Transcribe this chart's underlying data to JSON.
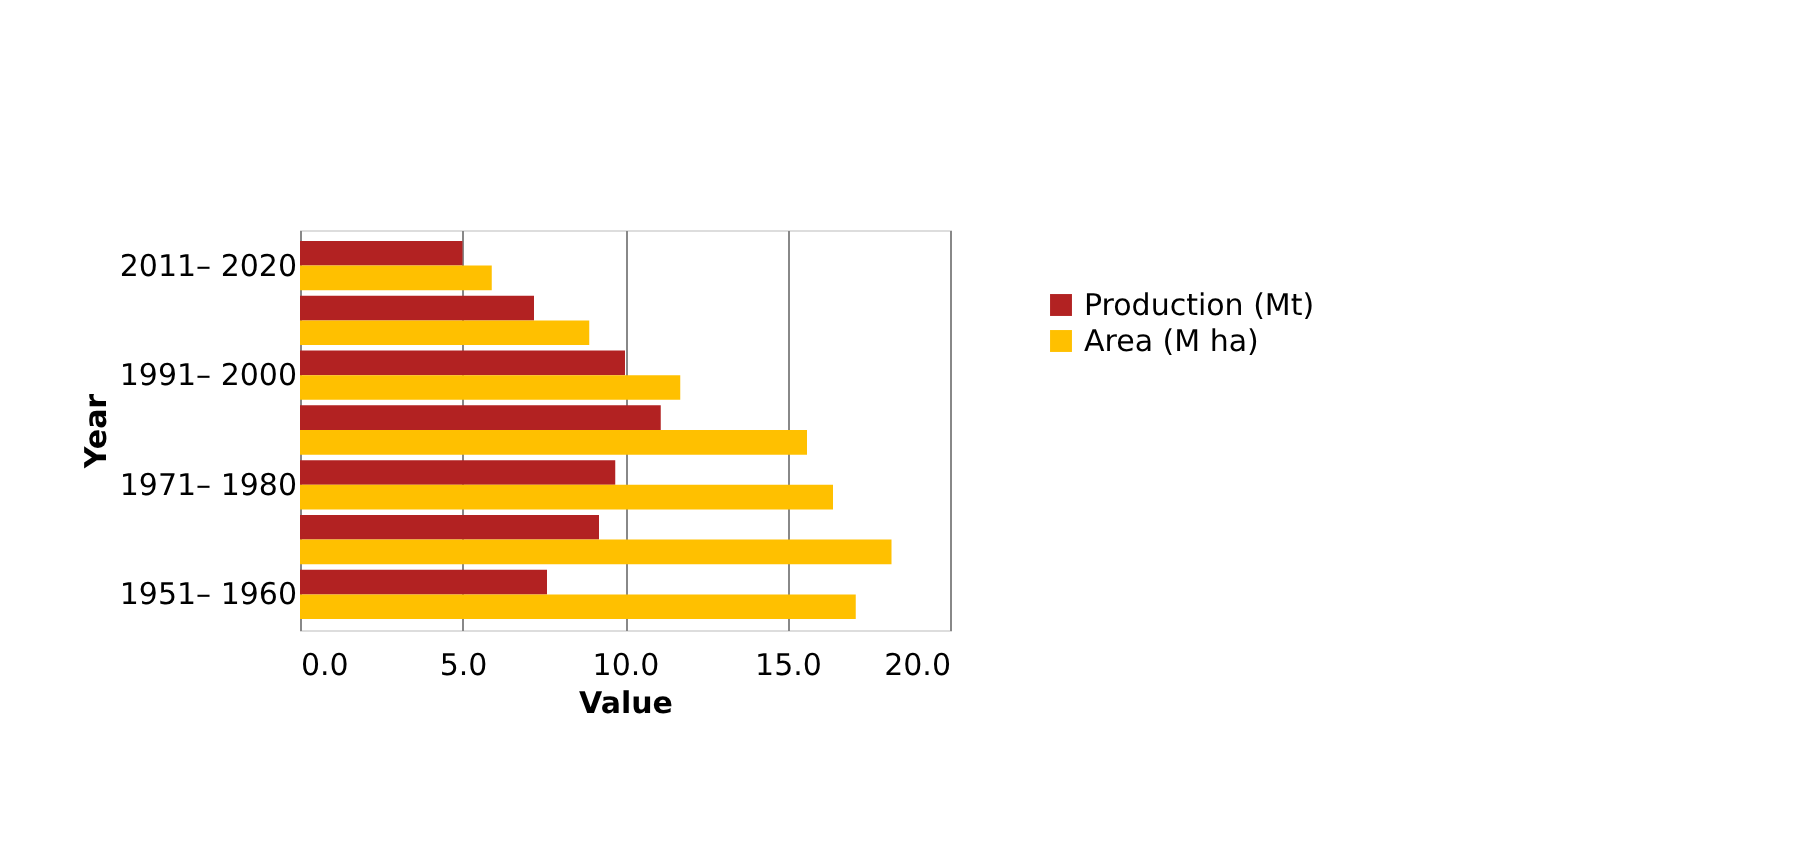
{
  "chart_data": {
    "type": "bar",
    "orientation": "horizontal",
    "xlabel": "Value",
    "ylabel": "Year",
    "categories": [
      "2011– 2020",
      null,
      "1991– 2000",
      null,
      "1971– 1980",
      null,
      "1951– 1960"
    ],
    "series": [
      {
        "name": "Production (Mt)",
        "color": "#b22222",
        "values": [
          5.0,
          7.2,
          10.0,
          11.1,
          9.7,
          9.2,
          7.6
        ]
      },
      {
        "name": "Area (M ha)",
        "color": "#ffc000",
        "values": [
          5.9,
          8.9,
          11.7,
          15.6,
          16.4,
          18.2,
          17.1
        ]
      }
    ],
    "xlim": [
      0,
      20
    ],
    "xticks": [
      {
        "value": 0,
        "label": "0.0"
      },
      {
        "value": 5,
        "label": "5.0"
      },
      {
        "value": 10,
        "label": "10.0"
      },
      {
        "value": 15,
        "label": "15.0"
      },
      {
        "value": 20,
        "label": "20.0"
      }
    ],
    "grid": "x",
    "legend": "right"
  }
}
